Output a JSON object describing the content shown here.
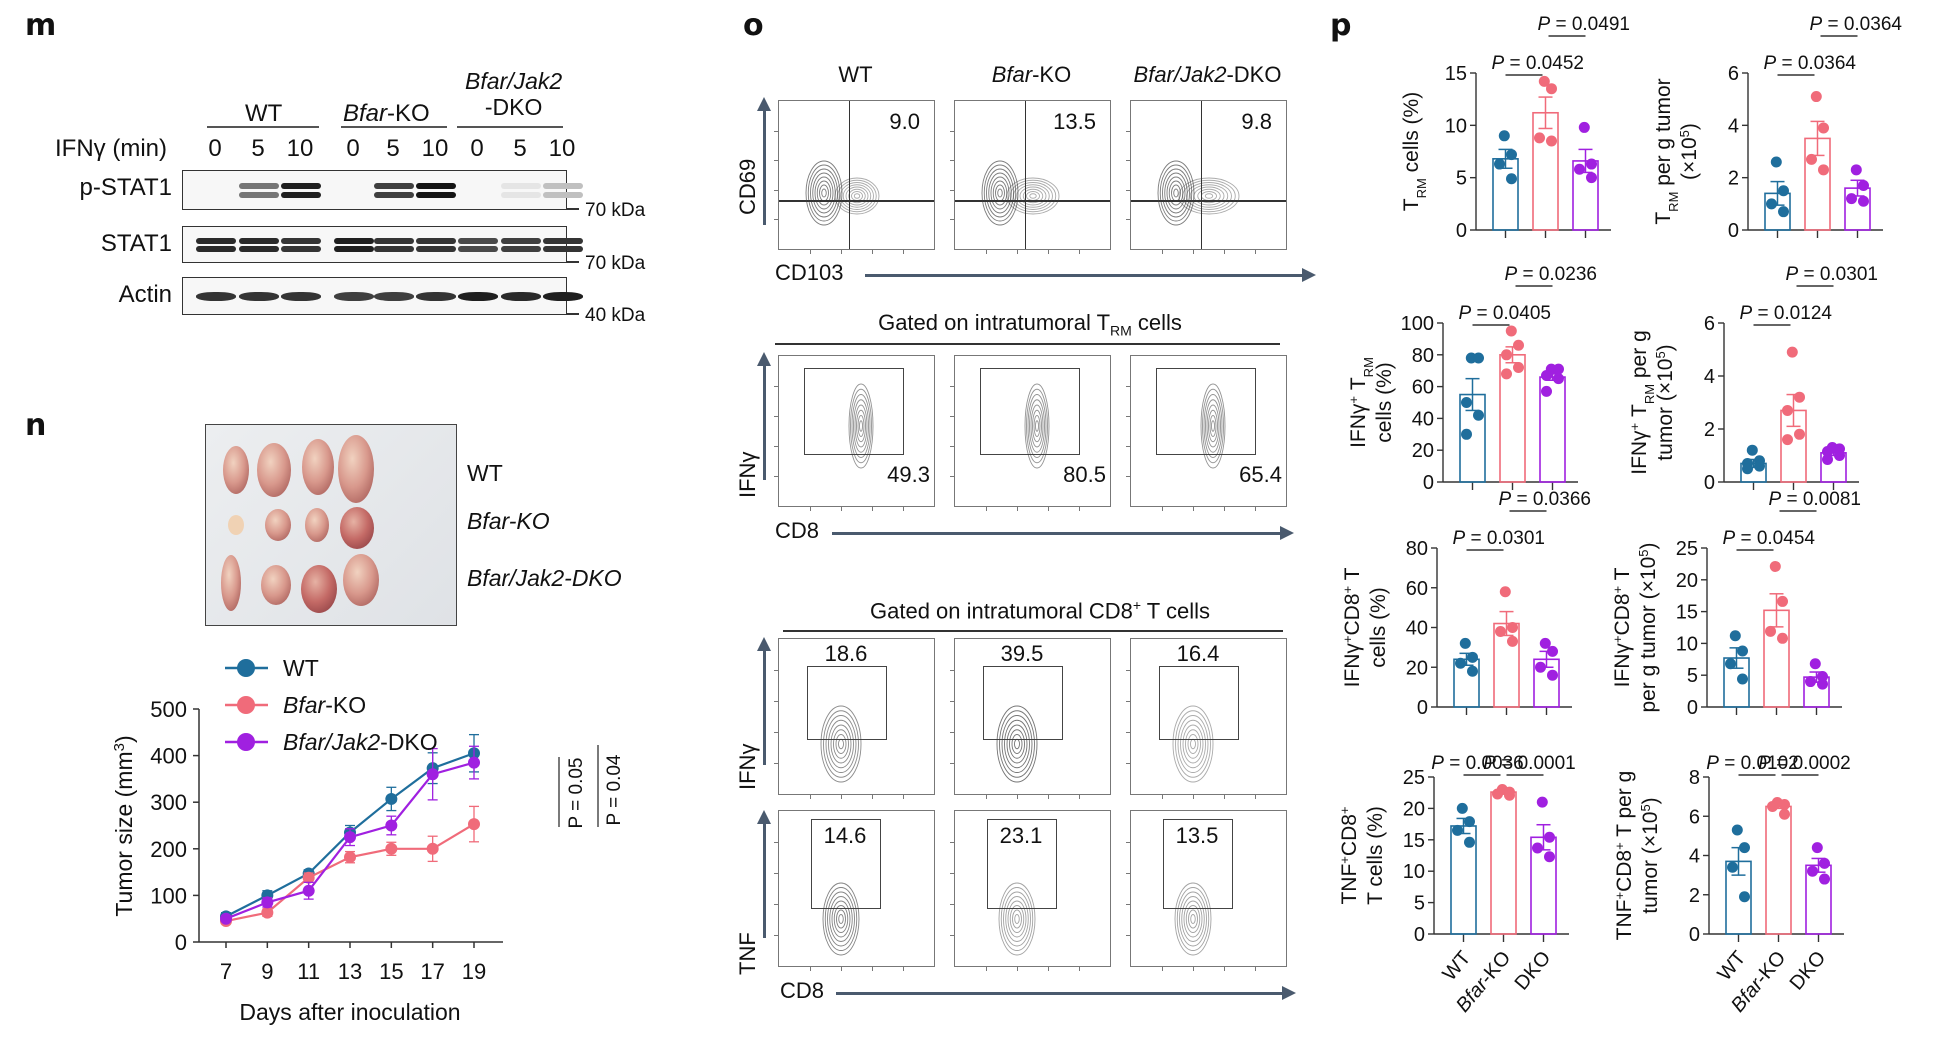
{
  "panels": {
    "m": {
      "label": "m",
      "groups": [
        {
          "name": "WT",
          "italic": ""
        },
        {
          "name": "-KO",
          "italic": "Bfar"
        },
        {
          "name": "/Jak2",
          "italic": "Bfar",
          "line2": "-DKO"
        }
      ],
      "group_labels": [
        "WT",
        "Bfar-KO",
        "Bfar/Jak2 -DKO"
      ],
      "treatment_label": "IFNγ (min)",
      "timepoints": [
        "0",
        "5",
        "10",
        "0",
        "5",
        "10",
        "0",
        "5",
        "10"
      ],
      "rows": [
        {
          "name": "p-STAT1",
          "marker": "70 kDa",
          "intensity": [
            0,
            0.55,
            0.95,
            0,
            0.8,
            1.0,
            0,
            0.03,
            0.2
          ]
        },
        {
          "name": "STAT1",
          "marker": "70 kDa",
          "intensity": [
            0.9,
            0.9,
            0.85,
            0.95,
            0.85,
            0.85,
            0.75,
            0.8,
            0.85
          ]
        },
        {
          "name": "Actin",
          "marker": "40 kDa",
          "intensity": [
            0.85,
            0.85,
            0.85,
            0.8,
            0.8,
            0.85,
            0.95,
            0.9,
            0.95
          ]
        }
      ]
    },
    "n": {
      "label": "n",
      "photo_rows": [
        "WT",
        "Bfar-KO",
        "Bfar/Jak2-DKO"
      ]
    },
    "o": {
      "label": "o",
      "columns": [
        "WT",
        "Bfar-KO",
        "Bfar/Jak2-DKO"
      ],
      "row1": {
        "y_axis": "CD69",
        "x_axis": "CD103",
        "values": [
          "9.0",
          "13.5",
          "9.8"
        ]
      },
      "row2": {
        "gate_title": "Gated on intratumoral T",
        "gate_sub": "RM",
        "gate_suffix": " cells",
        "y_axis": "IFNγ",
        "x_axis": "CD8",
        "values": [
          "49.3",
          "80.5",
          "65.4"
        ]
      },
      "row3": {
        "gate_title": "Gated on intratumoral CD8",
        "gate_sup": "+",
        "gate_suffix": " T cells",
        "y_axis": "IFNγ",
        "values": [
          "18.6",
          "39.5",
          "16.4"
        ]
      },
      "row4": {
        "y_axis": "TNF",
        "x_axis": "CD8",
        "values": [
          "14.6",
          "23.1",
          "13.5"
        ]
      }
    },
    "p": {
      "label": "p"
    }
  },
  "colors": {
    "wt": "#1f6e9c",
    "ko": "#f06b7a",
    "dko": "#a020e0",
    "axis_arrow": "#4a5a6e"
  },
  "chart_data": [
    {
      "type": "line",
      "id": "tumor-growth",
      "title": "",
      "xlabel": "Days after inoculation",
      "ylabel": "Tumor size (mm3)",
      "x": [
        7,
        9,
        11,
        13,
        15,
        17,
        19
      ],
      "xlim": [
        6,
        20.4
      ],
      "ylim": [
        0,
        500
      ],
      "yticks": [
        0,
        100,
        200,
        300,
        400,
        500
      ],
      "legend": "top-left",
      "series": [
        {
          "name": "WT",
          "key": "wt",
          "values": [
            55,
            100,
            147,
            235,
            307,
            373,
            405
          ],
          "err": [
            8,
            10,
            8,
            15,
            25,
            33,
            40
          ]
        },
        {
          "name": "Bfar-KO",
          "key": "ko",
          "values": [
            45,
            63,
            138,
            182,
            200,
            200,
            253
          ],
          "err": [
            6,
            8,
            10,
            12,
            14,
            27,
            38
          ]
        },
        {
          "name": "Bfar/Jak2-DKO",
          "key": "dko",
          "values": [
            50,
            85,
            110,
            225,
            250,
            360,
            385
          ],
          "err": [
            6,
            10,
            18,
            18,
            20,
            55,
            35
          ]
        }
      ],
      "annotations": [
        "P = 0.05",
        "P = 0.04"
      ]
    },
    {
      "type": "bar",
      "id": "trm-pct",
      "ylabel": "TRM cells (%)",
      "ylim": [
        0,
        15
      ],
      "yticks": [
        0,
        5,
        10,
        15
      ],
      "categories": [
        "WT",
        "Bfar-KO",
        "DKO"
      ],
      "means": [
        6.8,
        11.2,
        6.6
      ],
      "sem": [
        0.9,
        1.5,
        1.1
      ],
      "points": [
        [
          9.0,
          7.2,
          6.3,
          4.9
        ],
        [
          14.2,
          13.5,
          8.8,
          8.5
        ],
        [
          9.8,
          6.3,
          5.8,
          5.0
        ]
      ],
      "pvalues": [
        {
          "text": "P = 0.0452",
          "pair": [
            0,
            1
          ]
        },
        {
          "text": "P = 0.0491",
          "pair": [
            1,
            2
          ]
        }
      ]
    },
    {
      "type": "bar",
      "id": "trm-count",
      "ylabel": "TRM per g tumor (×10^5)",
      "ylim": [
        0,
        6
      ],
      "yticks": [
        0,
        2,
        4,
        6
      ],
      "categories": [
        "WT",
        "Bfar-KO",
        "DKO"
      ],
      "means": [
        1.4,
        3.5,
        1.6
      ],
      "sem": [
        0.45,
        0.65,
        0.3
      ],
      "points": [
        [
          2.6,
          1.5,
          1.0,
          0.7
        ],
        [
          5.1,
          3.9,
          2.7,
          2.3
        ],
        [
          2.3,
          1.7,
          1.2,
          1.1
        ]
      ],
      "pvalues": [
        {
          "text": "P = 0.0364",
          "pair": [
            0,
            1
          ]
        },
        {
          "text": "P = 0.0364",
          "pair": [
            1,
            2
          ]
        }
      ]
    },
    {
      "type": "bar",
      "id": "ifng-trm-pct",
      "ylabel": "IFNγ+ TRM cells (%)",
      "ylim": [
        0,
        100
      ],
      "yticks": [
        0,
        20,
        40,
        60,
        80,
        100
      ],
      "categories": [
        "WT",
        "Bfar-KO",
        "DKO"
      ],
      "means": [
        55,
        80,
        66
      ],
      "sem": [
        10,
        5,
        2
      ],
      "points": [
        [
          78,
          78,
          50,
          42,
          30
        ],
        [
          95,
          86,
          80,
          72,
          68
        ],
        [
          71,
          71,
          67,
          65,
          57
        ]
      ],
      "pvalues": [
        {
          "text": "P = 0.0405",
          "pair": [
            0,
            1
          ]
        },
        {
          "text": "P = 0.0236",
          "pair": [
            1,
            2
          ]
        }
      ]
    },
    {
      "type": "bar",
      "id": "ifng-trm-count",
      "ylabel": "IFNγ+ TRM per g tumor (×10^5)",
      "ylim": [
        0,
        6
      ],
      "yticks": [
        0,
        2,
        4,
        6
      ],
      "categories": [
        "WT",
        "Bfar-KO",
        "DKO"
      ],
      "means": [
        0.7,
        2.7,
        1.1
      ],
      "sem": [
        0.15,
        0.6,
        0.1
      ],
      "points": [
        [
          1.2,
          0.8,
          0.7,
          0.6,
          0.5
        ],
        [
          4.9,
          3.2,
          2.7,
          1.8,
          1.6
        ],
        [
          1.3,
          1.25,
          1.15,
          1.0,
          0.85
        ]
      ],
      "pvalues": [
        {
          "text": "P = 0.0124",
          "pair": [
            0,
            1
          ]
        },
        {
          "text": "P = 0.0301",
          "pair": [
            1,
            2
          ]
        }
      ]
    },
    {
      "type": "bar",
      "id": "ifng-cd8-pct",
      "ylabel": "IFNγ+CD8+ T cells (%)",
      "ylim": [
        0,
        80
      ],
      "yticks": [
        0,
        20,
        40,
        60,
        80
      ],
      "categories": [
        "WT",
        "Bfar-KO",
        "DKO"
      ],
      "means": [
        24,
        42,
        24
      ],
      "sem": [
        3,
        6,
        4
      ],
      "points": [
        [
          32,
          25,
          22,
          18
        ],
        [
          58,
          40,
          38,
          33
        ],
        [
          32,
          28,
          20,
          16
        ]
      ],
      "pvalues": [
        {
          "text": "P = 0.0301",
          "pair": [
            0,
            1
          ]
        },
        {
          "text": "P = 0.0366",
          "pair": [
            1,
            2
          ]
        }
      ]
    },
    {
      "type": "bar",
      "id": "ifng-cd8-count",
      "ylabel": "IFNγ+CD8+ T per g tumor (×10^5)",
      "ylim": [
        0,
        25
      ],
      "yticks": [
        0,
        5,
        10,
        15,
        20,
        25
      ],
      "categories": [
        "WT",
        "Bfar-KO",
        "DKO"
      ],
      "means": [
        7.7,
        15.2,
        4.7
      ],
      "sem": [
        1.6,
        2.6,
        0.8
      ],
      "points": [
        [
          11.2,
          8.8,
          6.8,
          4.4
        ],
        [
          22.1,
          16.6,
          11.9,
          10.8
        ],
        [
          6.8,
          4.8,
          4.0,
          3.6
        ]
      ],
      "pvalues": [
        {
          "text": "P = 0.0454",
          "pair": [
            0,
            1
          ]
        },
        {
          "text": "P = 0.0081",
          "pair": [
            1,
            2
          ]
        }
      ]
    },
    {
      "type": "bar",
      "id": "tnf-cd8-pct",
      "ylabel": "TNF+CD8+ T cells (%)",
      "ylim": [
        0,
        25
      ],
      "yticks": [
        0,
        5,
        10,
        15,
        20,
        25
      ],
      "categories": [
        "WT",
        "Bfar-KO",
        "DKO"
      ],
      "means": [
        17.2,
        22.6,
        15.4
      ],
      "sem": [
        1.2,
        0.2,
        2.0
      ],
      "points": [
        [
          20.0,
          17.9,
          16.5,
          14.6
        ],
        [
          23.0,
          22.6,
          22.3,
          22.1
        ],
        [
          21.0,
          15.4,
          13.7,
          12.3
        ]
      ],
      "pvalues": [
        {
          "text": "P = 0.0036",
          "pair": [
            0,
            1
          ]
        },
        {
          "text": "P = 0.0001",
          "pair": [
            1,
            2
          ]
        }
      ]
    },
    {
      "type": "bar",
      "id": "tnf-cd8-count",
      "ylabel": "TNF+CD8+ T per g tumor (×10^5)",
      "ylim": [
        0,
        8
      ],
      "yticks": [
        0,
        2,
        4,
        6,
        8
      ],
      "categories": [
        "WT",
        "Bfar-KO",
        "DKO"
      ],
      "means": [
        3.7,
        6.5,
        3.5
      ],
      "sem": [
        0.7,
        0.1,
        0.35
      ],
      "points": [
        [
          5.3,
          4.4,
          3.4,
          1.9
        ],
        [
          6.7,
          6.6,
          6.5,
          6.1
        ],
        [
          4.4,
          3.6,
          3.2,
          2.8
        ]
      ],
      "pvalues": [
        {
          "text": "P = 0.0102",
          "pair": [
            0,
            1
          ]
        },
        {
          "text": "P = 0.0002",
          "pair": [
            1,
            2
          ]
        }
      ]
    }
  ]
}
